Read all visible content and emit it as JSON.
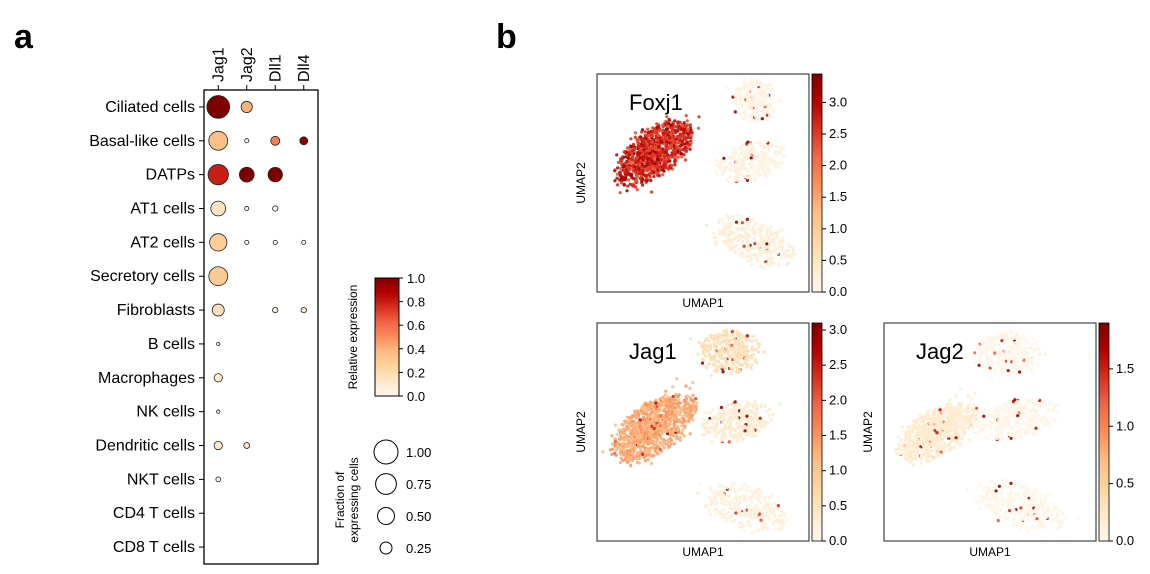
{
  "panel_a_letter": "a",
  "panel_b_letter": "b",
  "chart_data": [
    {
      "type": "dotplot",
      "genes": [
        "Jag1",
        "Jag2",
        "Dll1",
        "Dll4"
      ],
      "cell_types": [
        "Ciliated cells",
        "Basal-like cells",
        "DATPs",
        "AT1 cells",
        "AT2 cells",
        "Secretory cells",
        "Fibroblasts",
        "B cells",
        "Macrophages",
        "NK cells",
        "Dendritic cells",
        "NKT cells",
        "CD4 T cells",
        "CD8 T cells"
      ],
      "fraction": [
        [
          0.9,
          0.22,
          0.0,
          0.0
        ],
        [
          0.62,
          0.03,
          0.14,
          0.11
        ],
        [
          0.72,
          0.38,
          0.36,
          0.0
        ],
        [
          0.38,
          0.03,
          0.05,
          0.0
        ],
        [
          0.52,
          0.03,
          0.03,
          0.03
        ],
        [
          0.62,
          0.0,
          0.0,
          0.0
        ],
        [
          0.25,
          0.0,
          0.05,
          0.05
        ],
        [
          0.02,
          0.0,
          0.0,
          0.0
        ],
        [
          0.12,
          0.0,
          0.0,
          0.0
        ],
        [
          0.02,
          0.0,
          0.0,
          0.0
        ],
        [
          0.12,
          0.06,
          0.0,
          0.0
        ],
        [
          0.04,
          0.0,
          0.0,
          0.0
        ],
        [
          0.0,
          0.0,
          0.0,
          0.0
        ],
        [
          0.0,
          0.0,
          0.0,
          0.0
        ]
      ],
      "expression": [
        [
          1.0,
          0.4,
          0.0,
          0.0
        ],
        [
          0.35,
          0.02,
          0.55,
          0.95
        ],
        [
          0.8,
          1.0,
          1.0,
          0.0
        ],
        [
          0.15,
          0.02,
          0.02,
          0.0
        ],
        [
          0.28,
          0.02,
          0.02,
          0.02
        ],
        [
          0.3,
          0.0,
          0.0,
          0.0
        ],
        [
          0.18,
          0.0,
          0.03,
          0.1
        ],
        [
          0.05,
          0.0,
          0.0,
          0.0
        ],
        [
          0.1,
          0.0,
          0.0,
          0.0
        ],
        [
          0.05,
          0.0,
          0.0,
          0.0
        ],
        [
          0.1,
          0.1,
          0.0,
          0.0
        ],
        [
          0.05,
          0.0,
          0.0,
          0.0
        ],
        [
          0.0,
          0.0,
          0.0,
          0.0
        ],
        [
          0.0,
          0.0,
          0.0,
          0.0
        ]
      ],
      "colorbar": {
        "label": "Relative expression",
        "ticks": [
          "1.0",
          "0.8",
          "0.6",
          "0.4",
          "0.2",
          "0.0"
        ],
        "range": [
          0,
          1
        ]
      },
      "size_legend": {
        "label_line1": "Fraction of",
        "label_line2": "expressing cells",
        "values": [
          1.0,
          0.75,
          0.5,
          0.25
        ],
        "labels": [
          "1.00",
          "0.75",
          "0.50",
          "0.25"
        ]
      },
      "colormap": [
        "#fff7ec",
        "#fee8c8",
        "#fdd49e",
        "#fdbb84",
        "#fc8d59",
        "#ef6548",
        "#d7301f",
        "#b30000",
        "#7f0000"
      ]
    },
    {
      "type": "scatter",
      "title": "Foxj1",
      "xlabel": "UMAP1",
      "ylabel": "UMAP2",
      "colorbar_ticks": [
        "3.0",
        "2.5",
        "2.0",
        "1.5",
        "1.0",
        "0.5",
        "0.0"
      ],
      "colorbar_max": 3.45,
      "clusters": [
        {
          "name": "ciliated",
          "cx": 0.27,
          "cy": 0.36,
          "rx": 0.21,
          "ry": 0.1,
          "rot": -38,
          "n": 950,
          "level": 0.78
        },
        {
          "name": "top",
          "cx": 0.74,
          "cy": 0.12,
          "rx": 0.1,
          "ry": 0.1,
          "rot": 0,
          "n": 200,
          "level": 0.04
        },
        {
          "name": "middle",
          "cx": 0.72,
          "cy": 0.4,
          "rx": 0.16,
          "ry": 0.09,
          "rot": -12,
          "n": 260,
          "level": 0.05
        },
        {
          "name": "bottom",
          "cx": 0.74,
          "cy": 0.77,
          "rx": 0.2,
          "ry": 0.1,
          "rot": 22,
          "n": 300,
          "level": 0.08
        }
      ]
    },
    {
      "type": "scatter",
      "title": "Jag1",
      "xlabel": "UMAP1",
      "ylabel": "UMAP2",
      "colorbar_ticks": [
        "3.0",
        "2.5",
        "2.0",
        "1.5",
        "1.0",
        "0.5",
        "0.0"
      ],
      "colorbar_max": 3.1,
      "clusters": [
        {
          "name": "ciliated",
          "cx": 0.27,
          "cy": 0.48,
          "rx": 0.22,
          "ry": 0.11,
          "rot": -34,
          "n": 950,
          "level": 0.42
        },
        {
          "name": "top",
          "cx": 0.62,
          "cy": 0.13,
          "rx": 0.14,
          "ry": 0.1,
          "rot": 0,
          "n": 320,
          "level": 0.18
        },
        {
          "name": "middle",
          "cx": 0.66,
          "cy": 0.45,
          "rx": 0.17,
          "ry": 0.09,
          "rot": -12,
          "n": 300,
          "level": 0.1
        },
        {
          "name": "bottom",
          "cx": 0.7,
          "cy": 0.85,
          "rx": 0.2,
          "ry": 0.1,
          "rot": 20,
          "n": 300,
          "level": 0.06
        }
      ]
    },
    {
      "type": "scatter",
      "title": "Jag2",
      "xlabel": "UMAP1",
      "ylabel": "UMAP2",
      "colorbar_ticks": [
        "1.5",
        "1.0",
        "0.5",
        "0.0"
      ],
      "colorbar_max": 1.9,
      "clusters": [
        {
          "name": "ciliated",
          "cx": 0.25,
          "cy": 0.5,
          "rx": 0.2,
          "ry": 0.1,
          "rot": -30,
          "n": 700,
          "level": 0.1
        },
        {
          "name": "top",
          "cx": 0.58,
          "cy": 0.14,
          "rx": 0.15,
          "ry": 0.1,
          "rot": 0,
          "n": 320,
          "level": 0.02
        },
        {
          "name": "middle",
          "cx": 0.62,
          "cy": 0.44,
          "rx": 0.2,
          "ry": 0.09,
          "rot": -10,
          "n": 320,
          "level": 0.02
        },
        {
          "name": "bottom",
          "cx": 0.64,
          "cy": 0.84,
          "rx": 0.22,
          "ry": 0.1,
          "rot": 20,
          "n": 320,
          "level": 0.02
        }
      ]
    }
  ]
}
